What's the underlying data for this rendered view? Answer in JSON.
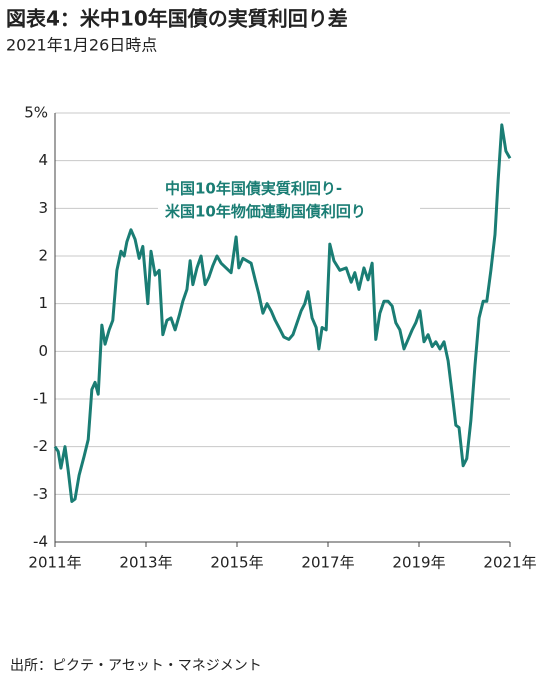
{
  "chart_data": {
    "type": "line",
    "title": "図表4：米中10年国債の実質利回り差",
    "subtitle": "2021年1月26日時点",
    "annotation": [
      "中国10年国債実質利回り-",
      "米国10年物価連動国債利回り"
    ],
    "source": "出所：ピクテ・アセット・マネジメント",
    "xlim": [
      2011,
      2021
    ],
    "xticks": [
      {
        "value": 2011,
        "label": "2011年"
      },
      {
        "value": 2013,
        "label": "2013年"
      },
      {
        "value": 2015,
        "label": "2015年"
      },
      {
        "value": 2017,
        "label": "2017年"
      },
      {
        "value": 2019,
        "label": "2019年"
      },
      {
        "value": 2021,
        "label": "2021年"
      }
    ],
    "ylim": [
      -4,
      5
    ],
    "yticks": [
      -4,
      -3,
      -2,
      -1,
      0,
      1,
      2,
      3,
      4,
      {
        "value": 5,
        "label": "5%"
      }
    ],
    "grid": true,
    "series": [
      {
        "color": "#1a7d74",
        "x": [
          2011.0,
          2011.07,
          2011.13,
          2011.22,
          2011.29,
          2011.37,
          2011.44,
          2011.53,
          2011.64,
          2011.73,
          2011.81,
          2011.88,
          2011.95,
          2012.03,
          2012.1,
          2012.19,
          2012.27,
          2012.36,
          2012.45,
          2012.52,
          2012.58,
          2012.67,
          2012.76,
          2012.85,
          2012.93,
          2013.04,
          2013.11,
          2013.2,
          2013.29,
          2013.37,
          2013.46,
          2013.55,
          2013.64,
          2013.73,
          2013.81,
          2013.9,
          2013.97,
          2014.03,
          2014.12,
          2014.21,
          2014.3,
          2014.38,
          2014.47,
          2014.56,
          2014.65,
          2014.76,
          2014.87,
          2014.98,
          2015.04,
          2015.13,
          2015.22,
          2015.31,
          2015.4,
          2015.48,
          2015.57,
          2015.66,
          2015.75,
          2015.84,
          2015.95,
          2016.03,
          2016.14,
          2016.23,
          2016.32,
          2016.41,
          2016.49,
          2016.56,
          2016.65,
          2016.74,
          2016.8,
          2016.87,
          2016.96,
          2017.04,
          2017.13,
          2017.26,
          2017.4,
          2017.51,
          2017.59,
          2017.68,
          2017.79,
          2017.88,
          2017.97,
          2018.05,
          2018.14,
          2018.23,
          2018.32,
          2018.41,
          2018.49,
          2018.58,
          2018.67,
          2018.76,
          2018.85,
          2018.93,
          2019.02,
          2019.11,
          2019.2,
          2019.29,
          2019.37,
          2019.46,
          2019.55,
          2019.64,
          2019.73,
          2019.81,
          2019.88,
          2019.97,
          2020.05,
          2020.14,
          2020.23,
          2020.32,
          2020.41,
          2020.49,
          2020.58,
          2020.67,
          2020.74,
          2020.82,
          2020.91,
          2021.0
        ],
        "values": [
          -2.0,
          -2.1,
          -2.45,
          -2.0,
          -2.5,
          -3.15,
          -3.1,
          -2.6,
          -2.2,
          -1.85,
          -0.8,
          -0.65,
          -0.9,
          0.55,
          0.15,
          0.45,
          0.65,
          1.7,
          2.1,
          2.0,
          2.3,
          2.55,
          2.35,
          1.95,
          2.2,
          1.0,
          2.1,
          1.6,
          1.7,
          0.35,
          0.65,
          0.7,
          0.45,
          0.75,
          1.05,
          1.3,
          1.9,
          1.4,
          1.75,
          2.0,
          1.4,
          1.55,
          1.8,
          2.0,
          1.85,
          1.75,
          1.65,
          2.4,
          1.75,
          1.95,
          1.9,
          1.85,
          1.5,
          1.2,
          0.8,
          1.0,
          0.85,
          0.65,
          0.45,
          0.3,
          0.25,
          0.35,
          0.6,
          0.85,
          1.0,
          1.25,
          0.7,
          0.5,
          0.05,
          0.5,
          0.45,
          2.25,
          1.9,
          1.7,
          1.75,
          1.45,
          1.65,
          1.3,
          1.75,
          1.5,
          1.85,
          0.25,
          0.8,
          1.05,
          1.05,
          0.95,
          0.6,
          0.45,
          0.05,
          0.25,
          0.45,
          0.6,
          0.85,
          0.2,
          0.35,
          0.1,
          0.2,
          0.05,
          0.2,
          -0.2,
          -0.9,
          -1.55,
          -1.6,
          -2.4,
          -2.25,
          -1.45,
          -0.3,
          0.7,
          1.05,
          1.05,
          1.7,
          2.45,
          3.6,
          4.75,
          4.2,
          4.05
        ]
      }
    ]
  }
}
